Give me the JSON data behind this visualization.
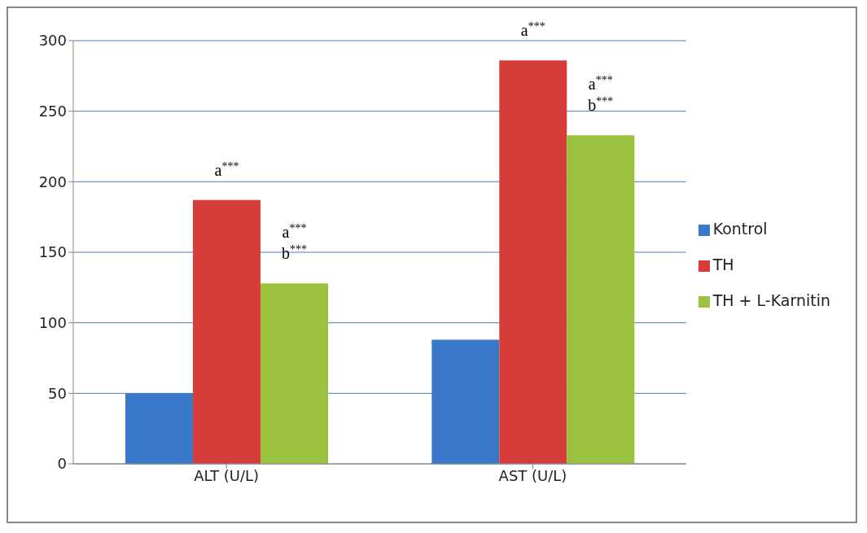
{
  "chart_data": {
    "type": "bar",
    "categories": [
      "ALT (U/L)",
      "AST (U/L)"
    ],
    "series": [
      {
        "name": "Kontrol",
        "color": "#3a78c9",
        "values": [
          50,
          88
        ]
      },
      {
        "name": "TH",
        "color": "#d63c3a",
        "values": [
          187,
          286
        ]
      },
      {
        "name": "TH + L-Karnitin",
        "color": "#9bc23f",
        "values": [
          128,
          233
        ]
      }
    ],
    "ylim": [
      0,
      300
    ],
    "yticks": [
      0,
      50,
      100,
      150,
      200,
      250,
      300
    ],
    "grid": "y",
    "legend": "right",
    "annotations": [
      {
        "text": "a$^{***}$",
        "x": "ALT (U/L)",
        "y": 187
      },
      "a$^{***}$\nb$^{***}$",
      {
        "text": "a$^{***}$",
        "x": "AST (U/L)",
        "y": 286
      },
      "a$^{***}$\nb$^{***}$"
    ]
  }
}
